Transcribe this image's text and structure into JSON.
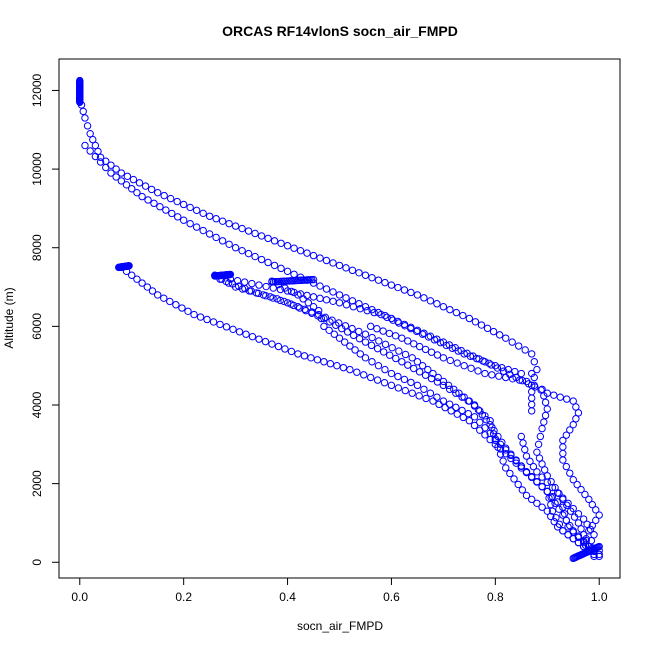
{
  "chart_data": {
    "type": "scatter",
    "title": "ORCAS RF14vlonS socn_air_FMPD",
    "xlabel": "socn_air_FMPD",
    "ylabel": "Altitude (m)",
    "xlim": [
      -0.04,
      1.04
    ],
    "ylim": [
      -400,
      12800
    ],
    "xticks": [
      0.0,
      0.2,
      0.4,
      0.6,
      0.8,
      1.0
    ],
    "xtick_labels": [
      "0.0",
      "0.2",
      "0.4",
      "0.6",
      "0.8",
      "1.0"
    ],
    "yticks": [
      0,
      2000,
      4000,
      6000,
      8000,
      10000,
      12000
    ],
    "ytick_labels": [
      "0",
      "2000",
      "4000",
      "6000",
      "8000",
      "10000",
      "12000"
    ],
    "grid": false,
    "marker": "open-circle",
    "color": "#0000ff",
    "series": [
      {
        "segments": [
          [
            [
              0.0,
              12200
            ],
            [
              0.0,
              11800
            ],
            [
              0.01,
              11300
            ],
            [
              0.02,
              10900
            ],
            [
              0.04,
              10300
            ],
            [
              0.08,
              9900
            ],
            [
              0.15,
              9400
            ],
            [
              0.25,
              8800
            ],
            [
              0.35,
              8300
            ],
            [
              0.45,
              7800
            ],
            [
              0.55,
              7300
            ],
            [
              0.65,
              6800
            ],
            [
              0.75,
              6200
            ],
            [
              0.82,
              5700
            ],
            [
              0.87,
              5300
            ],
            [
              0.88,
              4900
            ],
            [
              0.87,
              4500
            ],
            [
              0.87,
              3850
            ]
          ],
          [
            [
              0.01,
              10600
            ],
            [
              0.06,
              9900
            ],
            [
              0.12,
              9300
            ],
            [
              0.2,
              8700
            ],
            [
              0.3,
              8000
            ],
            [
              0.4,
              7400
            ],
            [
              0.5,
              6800
            ],
            [
              0.6,
              6200
            ],
            [
              0.7,
              5600
            ],
            [
              0.78,
              5100
            ],
            [
              0.84,
              4700
            ],
            [
              0.9,
              4300
            ],
            [
              0.95,
              4100
            ],
            [
              0.96,
              3800
            ],
            [
              0.95,
              3500
            ],
            [
              0.93,
              3100
            ],
            [
              0.93,
              2600
            ],
            [
              0.95,
              2100
            ],
            [
              0.98,
              1600
            ],
            [
              1.0,
              1200
            ],
            [
              0.98,
              800
            ],
            [
              0.97,
              400
            ],
            [
              0.99,
              150
            ]
          ],
          [
            [
              0.08,
              7500
            ],
            [
              0.1,
              7300
            ],
            [
              0.15,
              6800
            ],
            [
              0.22,
              6300
            ],
            [
              0.32,
              5800
            ],
            [
              0.42,
              5300
            ],
            [
              0.52,
              4900
            ],
            [
              0.6,
              4500
            ],
            [
              0.68,
              4100
            ],
            [
              0.75,
              3600
            ],
            [
              0.8,
              3000
            ],
            [
              0.85,
              2400
            ],
            [
              0.9,
              1800
            ],
            [
              0.93,
              1200
            ],
            [
              0.95,
              800
            ],
            [
              0.98,
              400
            ],
            [
              1.0,
              150
            ]
          ],
          [
            [
              0.26,
              7300
            ],
            [
              0.3,
              7000
            ],
            [
              0.38,
              6700
            ],
            [
              0.46,
              6300
            ],
            [
              0.55,
              5800
            ],
            [
              0.64,
              5200
            ],
            [
              0.7,
              4600
            ],
            [
              0.75,
              4100
            ],
            [
              0.79,
              3600
            ],
            [
              0.8,
              3100
            ],
            [
              0.82,
              2400
            ],
            [
              0.86,
              1700
            ],
            [
              0.9,
              1300
            ],
            [
              0.92,
              900
            ],
            [
              0.96,
              500
            ],
            [
              1.0,
              300
            ]
          ],
          [
            [
              0.27,
              7200
            ],
            [
              0.33,
              6900
            ],
            [
              0.4,
              6600
            ],
            [
              0.47,
              6200
            ],
            [
              0.55,
              5600
            ],
            [
              0.62,
              5100
            ],
            [
              0.7,
              4500
            ],
            [
              0.76,
              4000
            ],
            [
              0.79,
              3500
            ],
            [
              0.82,
              2900
            ],
            [
              0.86,
              2300
            ],
            [
              0.9,
              1800
            ],
            [
              0.93,
              1400
            ],
            [
              0.94,
              900
            ],
            [
              0.97,
              500
            ],
            [
              1.0,
              200
            ]
          ],
          [
            [
              0.37,
              7150
            ],
            [
              0.42,
              6800
            ],
            [
              0.46,
              6400
            ],
            [
              0.47,
              6000
            ],
            [
              0.5,
              5700
            ],
            [
              0.55,
              5200
            ],
            [
              0.6,
              4800
            ],
            [
              0.65,
              4500
            ],
            [
              0.7,
              4100
            ],
            [
              0.76,
              3700
            ],
            [
              0.81,
              3000
            ],
            [
              0.86,
              2300
            ],
            [
              0.9,
              1800
            ],
            [
              0.91,
              1300
            ],
            [
              0.93,
              800
            ],
            [
              0.97,
              400
            ],
            [
              0.99,
              200
            ]
          ],
          [
            [
              0.56,
              6000
            ],
            [
              0.62,
              5700
            ],
            [
              0.7,
              5200
            ],
            [
              0.78,
              4800
            ],
            [
              0.86,
              4600
            ],
            [
              0.89,
              4400
            ],
            [
              0.9,
              3900
            ],
            [
              0.89,
              3400
            ],
            [
              0.88,
              2800
            ],
            [
              0.9,
              2200
            ],
            [
              0.93,
              1600
            ],
            [
              0.96,
              1000
            ],
            [
              0.98,
              400
            ]
          ],
          [
            [
              0.29,
              7200
            ],
            [
              0.4,
              6900
            ],
            [
              0.5,
              6600
            ],
            [
              0.58,
              6300
            ],
            [
              0.66,
              5800
            ],
            [
              0.74,
              5300
            ],
            [
              0.8,
              5000
            ],
            [
              0.85,
              4800
            ],
            [
              0.87,
              4800
            ]
          ],
          [
            [
              0.85,
              3200
            ],
            [
              0.86,
              2700
            ],
            [
              0.88,
              2300
            ],
            [
              0.91,
              1900
            ],
            [
              0.94,
              1500
            ],
            [
              0.97,
              1100
            ],
            [
              0.99,
              700
            ],
            [
              0.98,
              400
            ]
          ]
        ],
        "dense_clusters": [
          {
            "x": [
              0.0,
              0.0
            ],
            "y": [
              11700,
              12250
            ]
          },
          {
            "x": [
              0.075,
              0.095
            ],
            "y": [
              7500,
              7540
            ]
          },
          {
            "x": [
              0.26,
              0.29
            ],
            "y": [
              7280,
              7320
            ]
          },
          {
            "x": [
              0.37,
              0.45
            ],
            "y": [
              7130,
              7190
            ]
          },
          {
            "x": [
              0.95,
              1.0
            ],
            "y": [
              100,
              400
            ]
          }
        ]
      }
    ]
  }
}
